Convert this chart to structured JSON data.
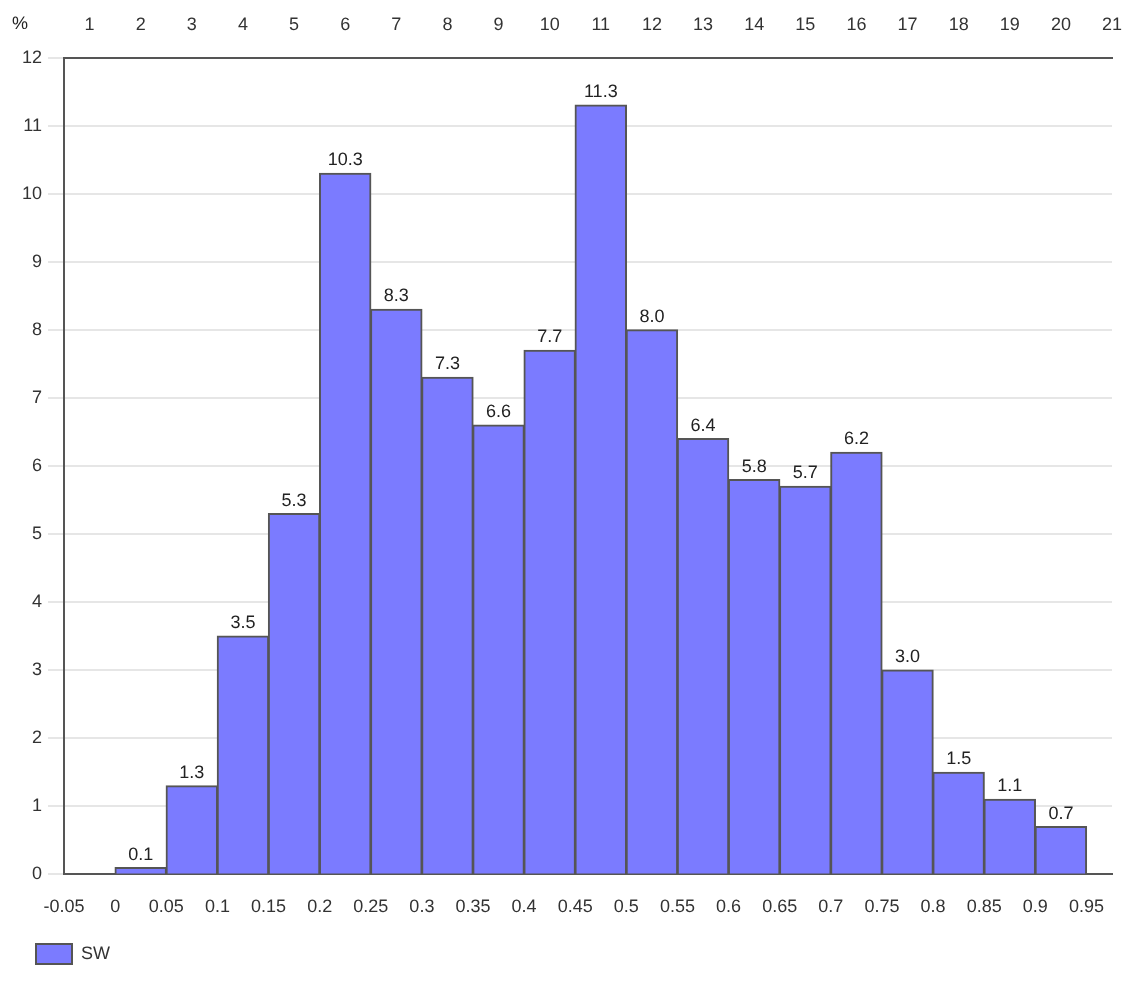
{
  "chart_data": {
    "type": "histogram",
    "ylabel": "%",
    "bins": [
      0,
      0.05,
      0.1,
      0.15,
      0.2,
      0.25,
      0.3,
      0.35,
      0.4,
      0.45,
      0.5,
      0.55,
      0.6,
      0.65,
      0.7,
      0.75,
      0.8,
      0.85,
      0.9,
      0.95
    ],
    "series": [
      {
        "name": "SW",
        "color": "#7b7bff",
        "values": [
          0.1,
          1.3,
          3.5,
          5.3,
          10.3,
          8.3,
          7.3,
          6.6,
          7.7,
          11.3,
          8.0,
          6.4,
          5.8,
          5.7,
          6.2,
          3.0,
          1.5,
          1.1,
          0.7
        ],
        "value_labels": [
          "0.1",
          "1.3",
          "3.5",
          "5.3",
          "10.3",
          "8.3",
          "7.3",
          "6.6",
          "7.7",
          "11.3",
          "8.0",
          "6.4",
          "5.8",
          "5.7",
          "6.2",
          "3.0",
          "1.5",
          "1.1",
          "0.7"
        ]
      }
    ],
    "xlim": [
      -0.05,
      0.975
    ],
    "xticks": [
      -0.05,
      0,
      0.05,
      0.1,
      0.15,
      0.2,
      0.25,
      0.3,
      0.35,
      0.4,
      0.45,
      0.5,
      0.55,
      0.6,
      0.65,
      0.7,
      0.75,
      0.8,
      0.85,
      0.9,
      0.95
    ],
    "x2lim": [
      0.5,
      21
    ],
    "x2ticks": [
      1,
      2,
      3,
      4,
      5,
      6,
      7,
      8,
      9,
      10,
      11,
      12,
      13,
      14,
      15,
      16,
      17,
      18,
      19,
      20,
      21
    ],
    "ylim": [
      0,
      12
    ],
    "yticks": [
      0,
      1,
      2,
      3,
      4,
      5,
      6,
      7,
      8,
      9,
      10,
      11,
      12
    ],
    "grid": "y",
    "legend": "bottom left"
  }
}
